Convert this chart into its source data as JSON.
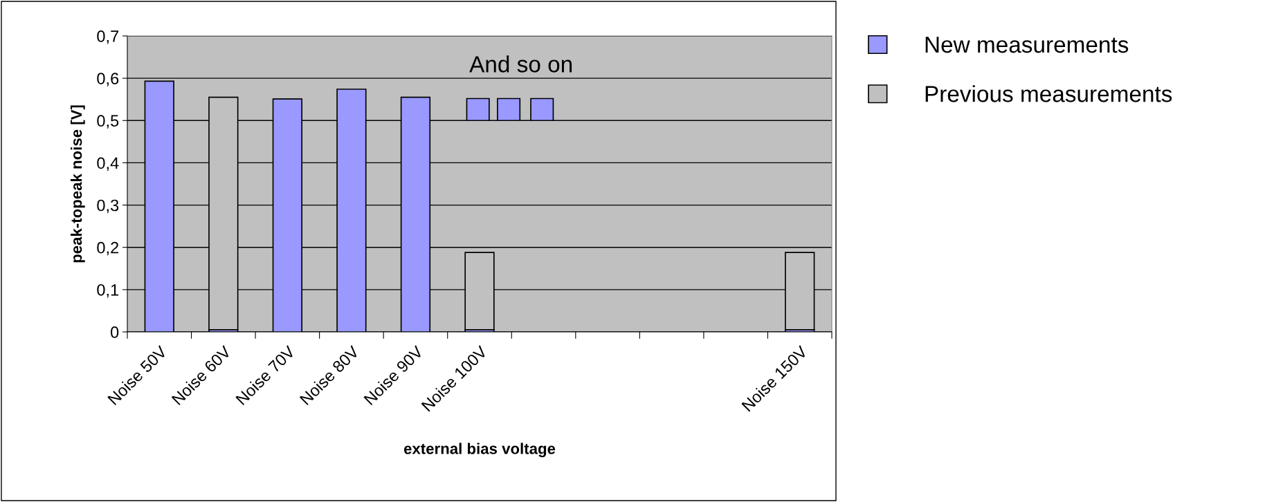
{
  "chart_data": {
    "type": "bar",
    "stacked": true,
    "categories": [
      "Noise 50V",
      "Noise 60V",
      "Noise 70V",
      "Noise 80V",
      "Noise 90V",
      "Noise 100V",
      null,
      null,
      null,
      null,
      "Noise 150V"
    ],
    "series": [
      {
        "name": "New measurements",
        "color": "#9999ff",
        "values": [
          0.593,
          0.005,
          0.551,
          0.574,
          0.555,
          0.005,
          null,
          null,
          null,
          null,
          0.005
        ]
      },
      {
        "name": "Previous measurements",
        "color": "#c0c0c0",
        "values": [
          null,
          0.55,
          null,
          null,
          null,
          0.183,
          null,
          null,
          null,
          null,
          0.183
        ]
      }
    ],
    "xlabel": "external bias voltage",
    "ylabel": "peak-topeak noise [V]",
    "ylim": [
      0,
      0.7
    ],
    "yticks": [
      {
        "value": 0,
        "label": "0"
      },
      {
        "value": 0.1,
        "label": "0,1"
      },
      {
        "value": 0.2,
        "label": "0,2"
      },
      {
        "value": 0.3,
        "label": "0,3"
      },
      {
        "value": 0.4,
        "label": "0,4"
      },
      {
        "value": 0.5,
        "label": "0,5"
      },
      {
        "value": 0.6,
        "label": "0,6"
      },
      {
        "value": 0.7,
        "label": "0,7"
      }
    ],
    "grid": "y",
    "legend": "right",
    "annotations": [
      "And so on"
    ]
  }
}
